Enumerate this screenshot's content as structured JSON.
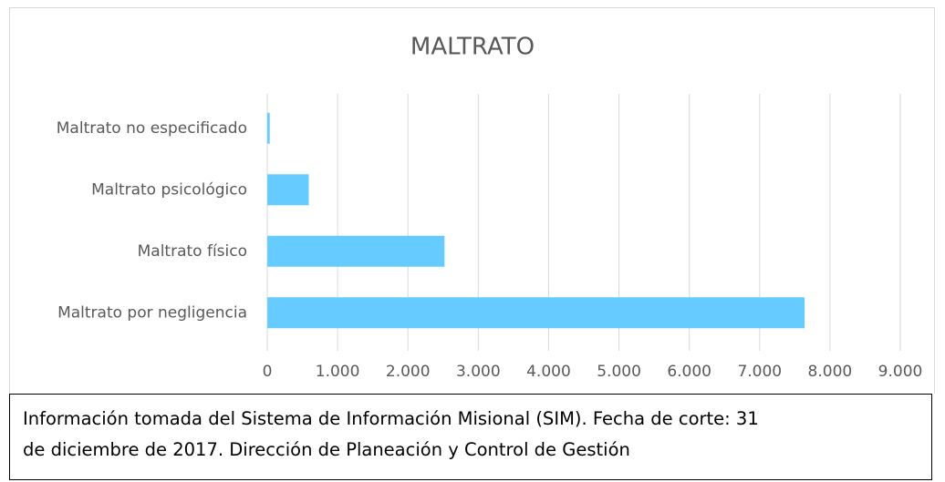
{
  "chart_data": {
    "type": "barh",
    "title": "MALTRATO",
    "categories": [
      "Maltrato por negligencia",
      "Maltrato físico",
      "Maltrato psicológico",
      "Maltrato no especificado"
    ],
    "values": [
      7640,
      2520,
      590,
      35
    ],
    "color": "#66ccff",
    "xlim": [
      0,
      9000
    ],
    "xticks": [
      0,
      {
        "value": 1000,
        "label": "1.000"
      },
      {
        "value": 2000,
        "label": "2.000"
      },
      {
        "value": 3000,
        "label": "3.000"
      },
      {
        "value": 4000,
        "label": "4.000"
      },
      {
        "value": 5000,
        "label": "5.000"
      },
      {
        "value": 6000,
        "label": "6.000"
      },
      {
        "value": 7000,
        "label": "7.000"
      },
      {
        "value": 8000,
        "label": "8.000"
      },
      {
        "value": 9000,
        "label": "9.000"
      }
    ],
    "grid": true
  },
  "caption": [
    "Información tomada del Sistema de Información Misional (SIM). Fecha de corte: 31",
    "de diciembre de 2017. Dirección de Planeación y Control de Gestión"
  ]
}
